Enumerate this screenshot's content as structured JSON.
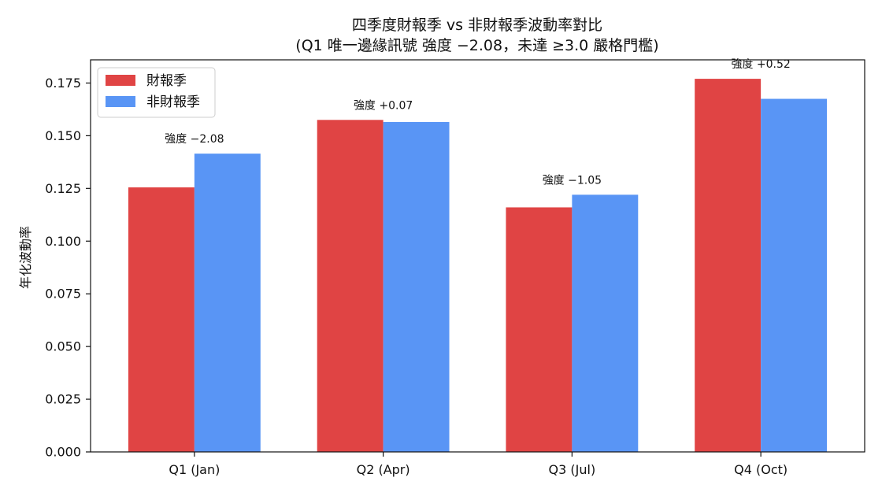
{
  "chart_data": {
    "type": "bar",
    "title": "四季度財報季 vs 非財報季波動率對比",
    "subtitle": "(Q1 唯一邊緣訊號 強度 −2.08，未達 ≥3.0 嚴格門檻)",
    "xlabel": "",
    "ylabel": "年化波動率",
    "categories": [
      "Q1 (Jan)",
      "Q2 (Apr)",
      "Q3 (Jul)",
      "Q4 (Oct)"
    ],
    "series": [
      {
        "name": "財報季",
        "color": "#e04444",
        "values": [
          0.1255,
          0.1575,
          0.116,
          0.177
        ]
      },
      {
        "name": "非財報季",
        "color": "#5995f5",
        "values": [
          0.1415,
          0.1565,
          0.122,
          0.1675
        ]
      }
    ],
    "annotations": [
      "強度 −2.08",
      "強度 +0.07",
      "強度 −1.05",
      "強度 +0.52"
    ],
    "ylim": [
      0,
      0.186
    ],
    "yticks": [
      "0.000",
      "0.025",
      "0.050",
      "0.075",
      "0.100",
      "0.125",
      "0.150",
      "0.175"
    ],
    "grid": false,
    "legend_position": "top-left"
  }
}
